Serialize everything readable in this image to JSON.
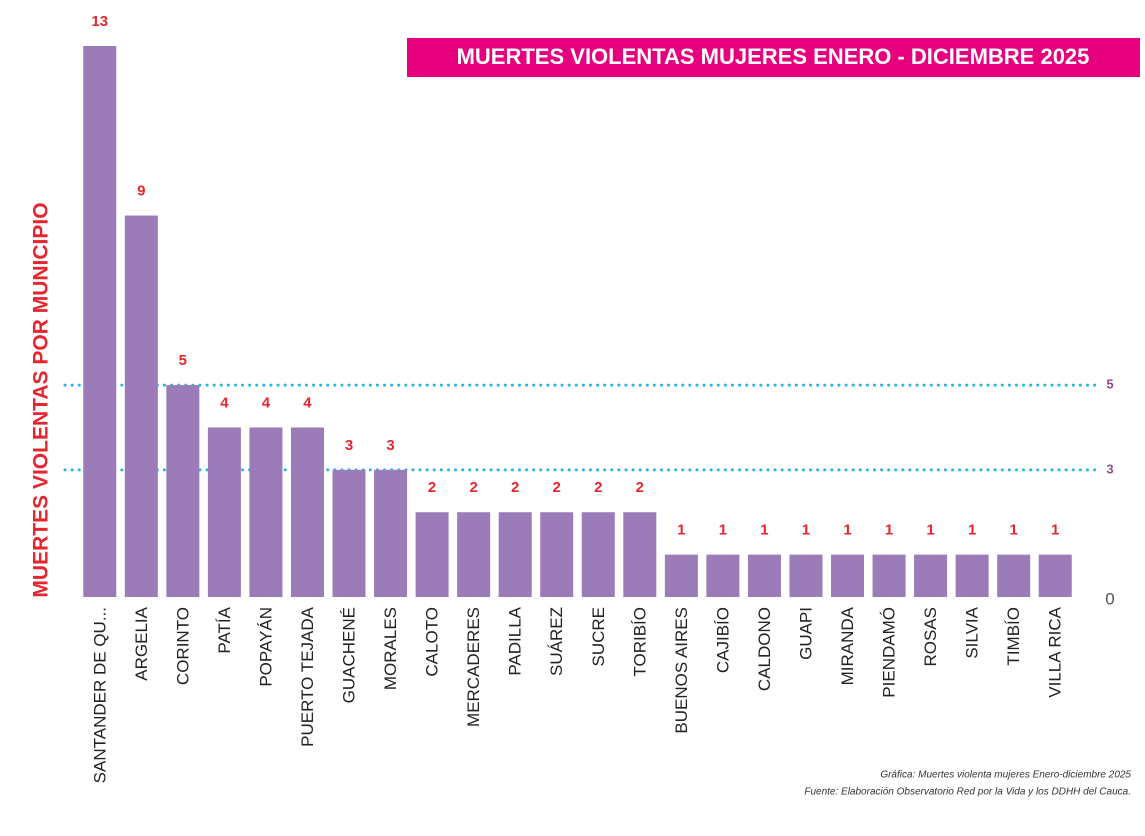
{
  "chart_data": {
    "type": "bar",
    "title": "MUERTES VIOLENTAS  MUJERES ENERO - DICIEMBRE   2025",
    "y_label": "MUERTES VIOLENTAS POR MUNICIPIO",
    "categories": [
      "SANTANDER DE QU...",
      "ARGELIA",
      "CORINTO",
      "PATÍA",
      "POPAYÁN",
      "PUERTO TEJADA",
      "GUACHENÉ",
      "MORALES",
      "CALOTO",
      "MERCADERES",
      "PADILLA",
      "SUÁREZ",
      "SUCRE",
      "TORIBÍO",
      "BUENOS AIRES",
      "CAJIBÍO",
      "CALDONO",
      "GUAPI",
      "MIRANDA",
      "PIENDAMÓ",
      "ROSAS",
      "SILVIA",
      "TIMBÍO",
      "VILLA RICA"
    ],
    "values": [
      13,
      9,
      5,
      4,
      4,
      4,
      3,
      3,
      2,
      2,
      2,
      2,
      2,
      2,
      1,
      1,
      1,
      1,
      1,
      1,
      1,
      1,
      1,
      1
    ],
    "color": "#9b7bb8",
    "ylim": [
      0,
      13
    ],
    "yticks": [
      0,
      3,
      5
    ],
    "grid": true,
    "notes": [
      "Gráfica: Muertes violenta mujeres Enero-diciembre 2025",
      "Fuente: Elaboración Observatorio Red por la Vida y los DDHH del Cauca."
    ]
  }
}
